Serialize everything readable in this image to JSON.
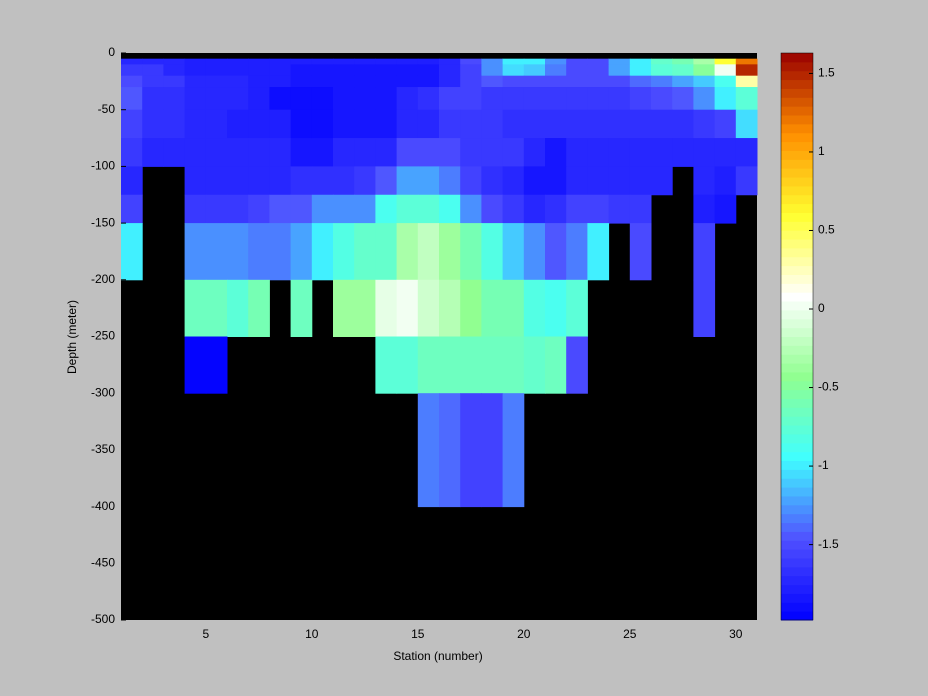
{
  "chart_data": {
    "type": "heatmap",
    "xlabel": "Station (number)",
    "ylabel": "Depth (meter)",
    "x": [
      1,
      2,
      3,
      4,
      5,
      6,
      7,
      8,
      9,
      10,
      11,
      12,
      13,
      14,
      15,
      16,
      17,
      18,
      19,
      20,
      21,
      22,
      23,
      24,
      25,
      26,
      27,
      28,
      29,
      30,
      31
    ],
    "y": [
      0,
      -5,
      -10,
      -20,
      -30,
      -50,
      -75,
      -100,
      -125,
      -150,
      -200,
      -250,
      -300,
      -400,
      -500
    ],
    "values": [
      [
        null,
        null,
        null,
        null,
        null,
        null,
        null,
        null,
        null,
        null,
        null,
        null,
        null,
        null,
        null,
        null,
        null,
        null,
        null,
        null,
        null,
        null,
        null,
        null,
        null,
        null,
        null,
        null,
        null,
        null
      ],
      [
        -1.7,
        -1.7,
        -1.75,
        -1.8,
        -1.8,
        -1.8,
        -1.8,
        -1.8,
        -1.8,
        -1.8,
        -1.8,
        -1.8,
        -1.8,
        -1.8,
        -1.8,
        -1.75,
        -1.5,
        -1.3,
        -1.0,
        -1.0,
        -1.3,
        -1.5,
        -1.5,
        -1.2,
        -1.0,
        -0.7,
        -0.6,
        -0.3,
        0.6,
        1.2
      ],
      [
        -1.6,
        -1.6,
        -1.7,
        -1.8,
        -1.8,
        -1.8,
        -1.8,
        -1.8,
        -1.85,
        -1.85,
        -1.85,
        -1.85,
        -1.85,
        -1.85,
        -1.85,
        -1.7,
        -1.55,
        -1.3,
        -1.05,
        -1.1,
        -1.35,
        -1.5,
        -1.5,
        -1.2,
        -1.0,
        -0.75,
        -0.7,
        -0.5,
        0.05,
        1.5
      ],
      [
        -1.5,
        -1.6,
        -1.6,
        -1.75,
        -1.75,
        -1.75,
        -1.8,
        -1.8,
        -1.85,
        -1.85,
        -1.85,
        -1.85,
        -1.85,
        -1.85,
        -1.85,
        -1.7,
        -1.55,
        -1.45,
        -1.5,
        -1.5,
        -1.5,
        -1.5,
        -1.5,
        -1.5,
        -1.4,
        -1.35,
        -1.2,
        -1.1,
        -0.9,
        0.3
      ],
      [
        -1.45,
        -1.65,
        -1.65,
        -1.75,
        -1.75,
        -1.75,
        -1.8,
        -1.9,
        -1.9,
        -1.9,
        -1.85,
        -1.85,
        -1.85,
        -1.75,
        -1.65,
        -1.55,
        -1.55,
        -1.6,
        -1.6,
        -1.6,
        -1.6,
        -1.6,
        -1.6,
        -1.6,
        -1.55,
        -1.5,
        -1.45,
        -1.3,
        -1.0,
        -0.75
      ],
      [
        -1.55,
        -1.65,
        -1.65,
        -1.75,
        -1.75,
        -1.8,
        -1.8,
        -1.8,
        -1.9,
        -1.9,
        -1.85,
        -1.85,
        -1.85,
        -1.7,
        -1.7,
        -1.6,
        -1.6,
        -1.6,
        -1.65,
        -1.65,
        -1.65,
        -1.65,
        -1.65,
        -1.65,
        -1.65,
        -1.65,
        -1.65,
        -1.6,
        -1.55,
        -1.05
      ],
      [
        -1.6,
        -1.7,
        -1.7,
        -1.7,
        -1.75,
        -1.75,
        -1.75,
        -1.75,
        -1.85,
        -1.85,
        -1.75,
        -1.75,
        -1.75,
        -1.5,
        -1.5,
        -1.5,
        -1.6,
        -1.6,
        -1.6,
        -1.7,
        -1.85,
        -1.75,
        -1.75,
        -1.75,
        -1.7,
        -1.7,
        -1.7,
        -1.75,
        -1.7,
        -1.7
      ],
      [
        -1.7,
        null,
        null,
        -1.75,
        -1.75,
        -1.75,
        -1.7,
        -1.7,
        -1.65,
        -1.65,
        -1.65,
        -1.6,
        -1.45,
        -1.2,
        -1.2,
        -1.35,
        -1.55,
        -1.65,
        -1.75,
        -1.85,
        -1.85,
        -1.75,
        -1.75,
        -1.7,
        -1.7,
        -1.7,
        null,
        -1.75,
        -1.8,
        -1.6
      ],
      [
        -1.55,
        null,
        null,
        -1.6,
        -1.6,
        -1.6,
        -1.55,
        -1.45,
        -1.45,
        -1.3,
        -1.25,
        -1.25,
        -0.9,
        -0.75,
        -0.75,
        -0.9,
        -1.3,
        -1.5,
        -1.6,
        -1.7,
        -1.65,
        -1.55,
        -1.55,
        -1.6,
        -1.6,
        null,
        null,
        -1.8,
        -1.85,
        null
      ],
      [
        -1.0,
        null,
        null,
        -1.3,
        -1.3,
        -1.3,
        -1.35,
        -1.35,
        -1.2,
        -1.0,
        -0.85,
        -0.7,
        -0.7,
        -0.3,
        -0.2,
        -0.4,
        -0.6,
        -0.8,
        -1.1,
        -1.3,
        -1.45,
        -1.35,
        -1.0,
        null,
        -1.5,
        null,
        null,
        -1.55,
        null,
        null
      ],
      [
        null,
        null,
        null,
        -0.65,
        -0.65,
        -0.75,
        -0.6,
        null,
        -0.65,
        null,
        -0.35,
        -0.35,
        -0.05,
        0.0,
        -0.15,
        -0.25,
        -0.45,
        -0.6,
        -0.6,
        -0.85,
        -0.9,
        -0.75,
        null,
        null,
        null,
        null,
        null,
        -1.55,
        null,
        null
      ],
      [
        null,
        null,
        null,
        -1.95,
        -1.95,
        null,
        null,
        null,
        null,
        null,
        null,
        null,
        -0.75,
        -0.75,
        -0.65,
        -0.65,
        -0.65,
        -0.65,
        -0.65,
        -0.7,
        -0.65,
        -1.5,
        null,
        null,
        null,
        null,
        null,
        null,
        null,
        null
      ],
      [
        null,
        null,
        null,
        null,
        null,
        null,
        null,
        null,
        null,
        null,
        null,
        null,
        null,
        null,
        -1.35,
        -1.4,
        -1.55,
        -1.55,
        -1.35,
        null,
        null,
        null,
        null,
        null,
        null,
        null,
        null,
        null,
        null,
        null
      ],
      [
        null,
        null,
        null,
        null,
        null,
        null,
        null,
        null,
        null,
        null,
        null,
        null,
        null,
        null,
        null,
        null,
        null,
        null,
        null,
        null,
        null,
        null,
        null,
        null,
        null,
        null,
        null,
        null,
        null,
        null
      ]
    ],
    "xlim": [
      1,
      31
    ],
    "ylim": [
      -500,
      0
    ],
    "xticks": [
      5,
      10,
      15,
      20,
      25,
      30
    ],
    "yticks": [
      0,
      -50,
      -100,
      -150,
      -200,
      -250,
      -300,
      -350,
      -400,
      -450,
      -500
    ],
    "clim": [
      -1.98,
      1.63
    ],
    "cticks": [
      1.5,
      1,
      0.5,
      0,
      -0.5,
      -1,
      -1.5
    ],
    "colormap": [
      "#0000ff",
      "#5050ff",
      "#40ffff",
      "#90ff90",
      "#ffffff",
      "#ffff30",
      "#ff9000",
      "#990000"
    ],
    "missing_color": "#000000"
  }
}
